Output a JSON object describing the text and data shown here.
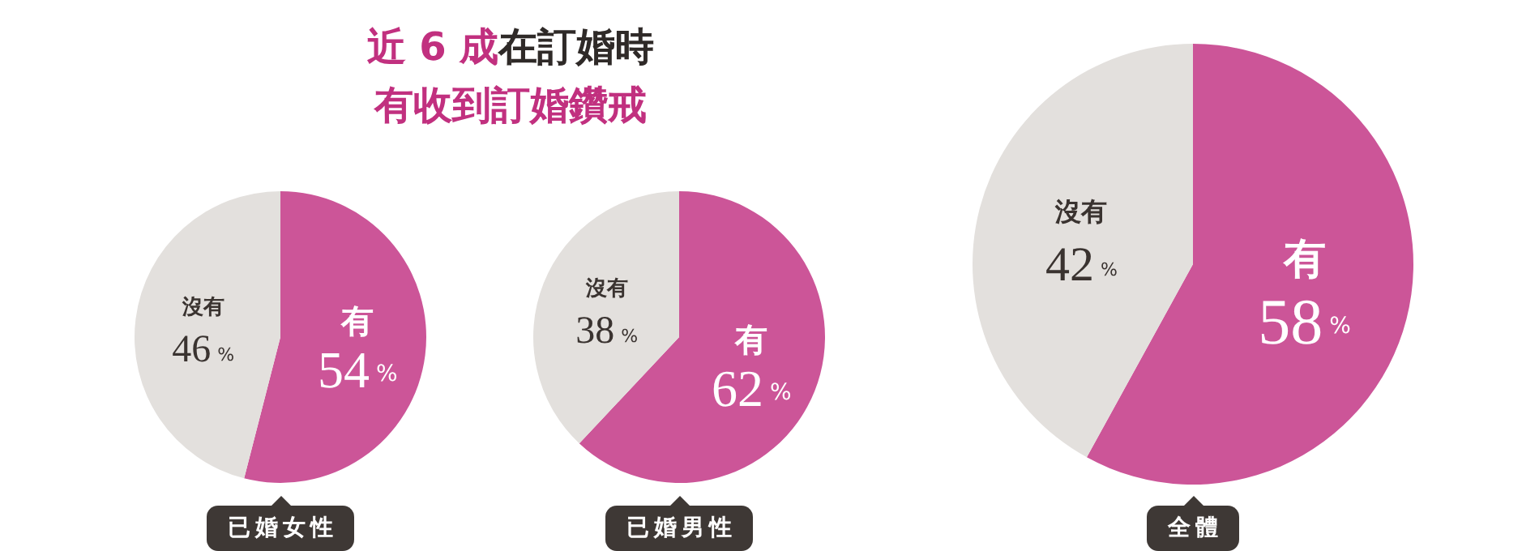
{
  "chart_data": [
    {
      "type": "pie",
      "title": "近 6 成在訂婚時",
      "subtitle": "有收到訂婚鑽戒",
      "xlabel": "已婚女性",
      "categories": [
        "有",
        "沒有"
      ],
      "values": [
        54,
        46
      ],
      "value_labels": [
        "54%",
        "46%"
      ],
      "colors": [
        "#cc5598",
        "#e3e0dd"
      ],
      "legend": false
    },
    {
      "type": "pie",
      "xlabel": "已婚男性",
      "categories": [
        "有",
        "沒有"
      ],
      "values": [
        62,
        38
      ],
      "value_labels": [
        "62%",
        "38%"
      ],
      "colors": [
        "#cc5598",
        "#e3e0dd"
      ],
      "legend": false
    },
    {
      "type": "pie",
      "xlabel": "全體",
      "categories": [
        "有",
        "沒有"
      ],
      "values": [
        58,
        42
      ],
      "value_labels": [
        "58%",
        "42%"
      ],
      "colors": [
        "#cc5598",
        "#e3e0dd"
      ],
      "legend": false
    }
  ]
}
